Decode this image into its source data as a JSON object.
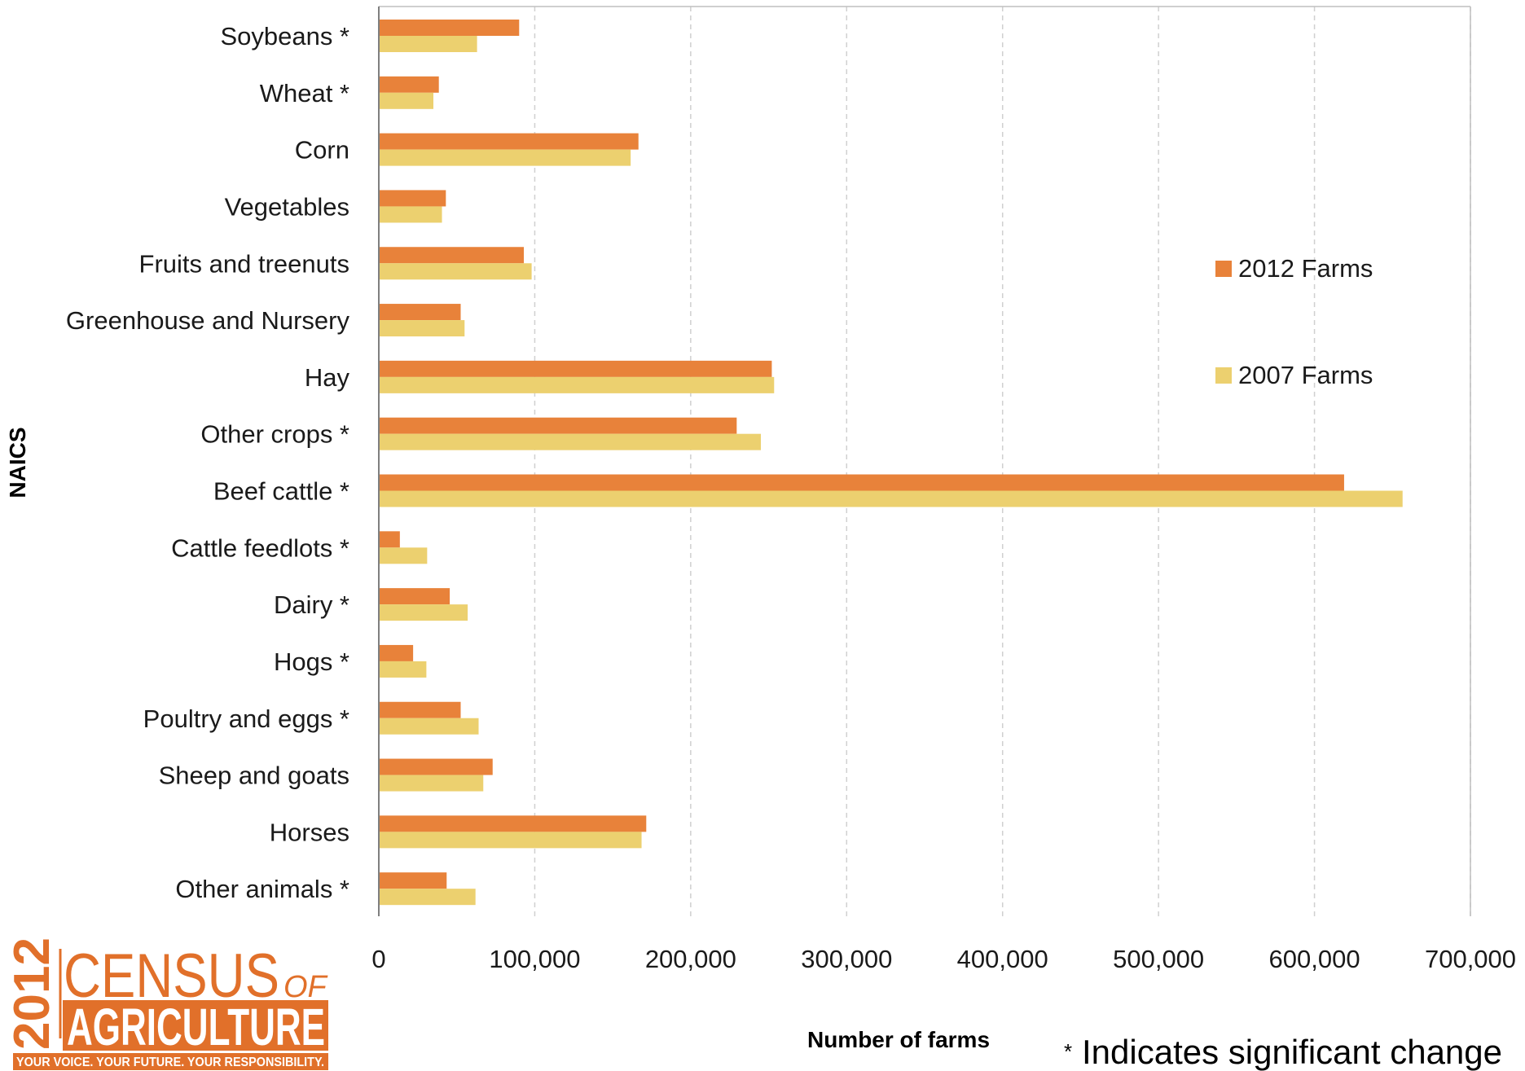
{
  "chart_data": {
    "type": "bar",
    "orientation": "horizontal",
    "title": "",
    "xlabel": "Number of farms",
    "ylabel": "NAICS",
    "xlim": [
      0,
      700000
    ],
    "x_ticks": [
      0,
      100000,
      200000,
      300000,
      400000,
      500000,
      600000,
      700000
    ],
    "x_tick_labels": [
      "0",
      "100,000",
      "200,000",
      "300,000",
      "400,000",
      "500,000",
      "600,000",
      "700,000"
    ],
    "grid": "vertical dashed",
    "legend_position": "right",
    "categories": [
      "Soybeans *",
      "Wheat *",
      "Corn",
      "Vegetables",
      "Fruits and treenuts",
      "Greenhouse and Nursery",
      "Hay",
      "Other crops *",
      "Beef cattle *",
      "Cattle feedlots *",
      "Dairy *",
      "Hogs *",
      "Poultry and eggs *",
      "Sheep and goats",
      "Horses",
      "Other animals *"
    ],
    "series": [
      {
        "name": "2012 Farms",
        "color": "#e8823a",
        "values": [
          90000,
          38500,
          166500,
          43000,
          93000,
          52500,
          252000,
          229500,
          619000,
          13500,
          45500,
          22000,
          52500,
          73000,
          171500,
          43500
        ]
      },
      {
        "name": "2007 Farms",
        "color": "#ecd06f",
        "values": [
          63000,
          35000,
          161500,
          40500,
          98000,
          55000,
          253500,
          245000,
          656500,
          31000,
          57000,
          30500,
          64000,
          67000,
          168500,
          62000
        ]
      }
    ]
  },
  "footnote": {
    "star": "*",
    "text": "Indicates significant change"
  },
  "logo": {
    "year": "2012",
    "line1": "CENSUS",
    "line1_suffix": "OF",
    "line2": "AGRICULTURE",
    "tagline": "YOUR VOICE. YOUR FUTURE. YOUR RESPONSIBILITY.",
    "color": "#e1702a"
  }
}
